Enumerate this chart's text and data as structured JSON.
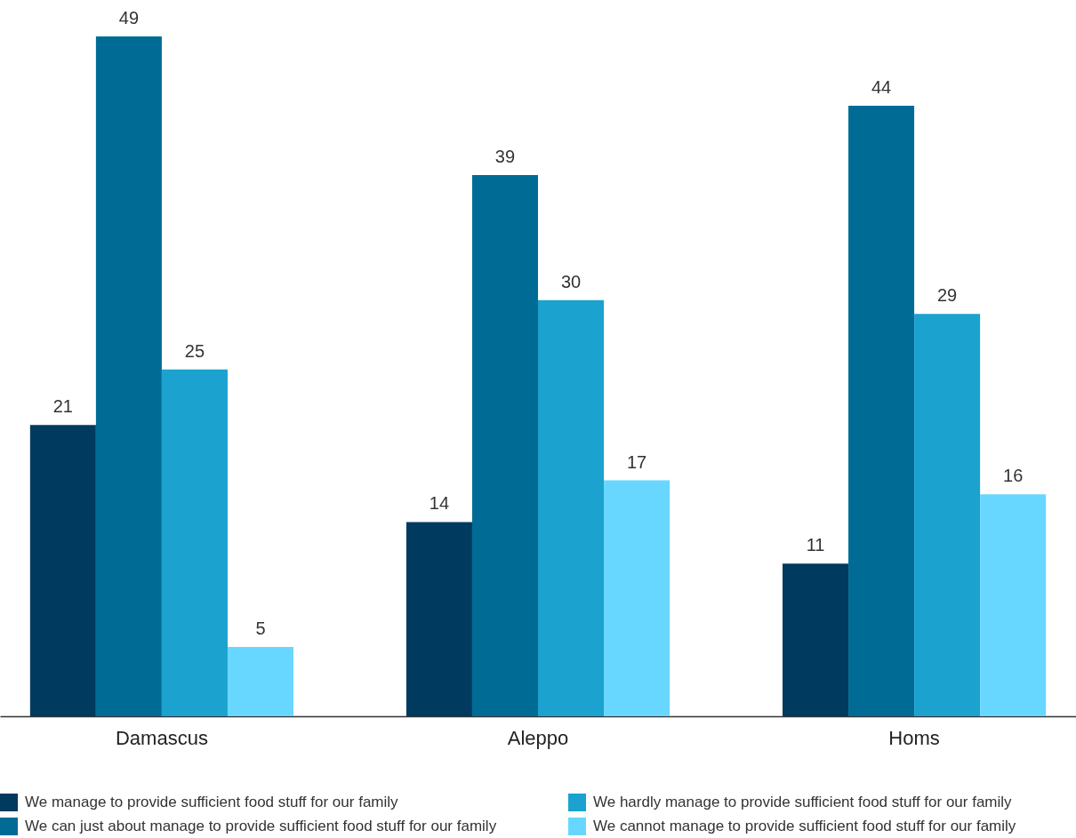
{
  "chart_data": {
    "type": "bar",
    "categories": [
      "Damascus",
      "Aleppo",
      "Homs"
    ],
    "series": [
      {
        "name": "We manage to provide sufficient food stuff for our family",
        "color": "#003a5e",
        "values": [
          21,
          14,
          11
        ]
      },
      {
        "name": "We can just about manage to provide sufficient food stuff for our family",
        "color": "#006c96",
        "values": [
          49,
          39,
          44
        ]
      },
      {
        "name": "We hardly manage to provide sufficient food stuff for our family",
        "color": "#1ba2cf",
        "values": [
          25,
          30,
          29
        ]
      },
      {
        "name": "We cannot manage to provide sufficient food stuff for our family",
        "color": "#68d7ff",
        "values": [
          5,
          17,
          16
        ]
      }
    ],
    "data_labels": true,
    "legend": "bottom",
    "tick_labels": "x"
  }
}
